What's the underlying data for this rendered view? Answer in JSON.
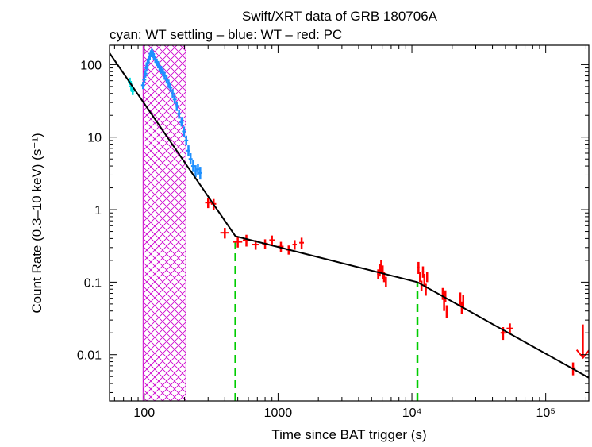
{
  "chart_data": {
    "type": "scatter",
    "title": "Swift/XRT data of GRB 180706A",
    "subtitle": "cyan: WT settling – blue: WT – red: PC",
    "xlabel": "Time since BAT trigger (s)",
    "ylabel": "Count Rate (0.3–10 keV) (s⁻¹)",
    "xscale": "log",
    "yscale": "log",
    "xlim": [
      55,
      210000
    ],
    "ylim": [
      0.0023,
      185
    ],
    "grid": false,
    "x_ticks": [
      {
        "value": 100,
        "label": "100"
      },
      {
        "value": 1000,
        "label": "1000"
      },
      {
        "value": 10000,
        "label": "10⁴"
      },
      {
        "value": 100000,
        "label": "10⁵"
      }
    ],
    "y_ticks": [
      {
        "value": 100,
        "label": "100"
      },
      {
        "value": 10,
        "label": "10"
      },
      {
        "value": 1,
        "label": "1"
      },
      {
        "value": 0.1,
        "label": "0.1"
      },
      {
        "value": 0.01,
        "label": "0.01"
      }
    ],
    "shaded_interval": {
      "x0": 98,
      "x1": 205,
      "color": "#cc00cc"
    },
    "break_lines": [
      {
        "x": 480,
        "color": "#00cc00"
      },
      {
        "x": 11000,
        "color": "#00cc00"
      }
    ],
    "model_line": [
      [
        55,
        145
      ],
      [
        480,
        0.43
      ],
      [
        11000,
        0.1
      ],
      [
        210000,
        0.0048
      ]
    ],
    "series": [
      {
        "name": "WT settling",
        "color": "#00e0e0",
        "points": [
          [
            78,
            58,
            52,
            66
          ],
          [
            80,
            50,
            44,
            56
          ],
          [
            82,
            43,
            38,
            48
          ]
        ]
      },
      {
        "name": "WT",
        "color": "#1e90ff",
        "points": [
          [
            98,
            52,
            46,
            58
          ],
          [
            100,
            62,
            55,
            70
          ],
          [
            102,
            75,
            66,
            84
          ],
          [
            104,
            90,
            80,
            101
          ],
          [
            106,
            105,
            94,
            118
          ],
          [
            108,
            118,
            106,
            132
          ],
          [
            110,
            130,
            117,
            145
          ],
          [
            112,
            142,
            128,
            158
          ],
          [
            114,
            148,
            133,
            165
          ],
          [
            116,
            140,
            126,
            156
          ],
          [
            118,
            128,
            115,
            143
          ],
          [
            121,
            118,
            106,
            132
          ],
          [
            124,
            108,
            96,
            121
          ],
          [
            127,
            100,
            89,
            112
          ],
          [
            130,
            92,
            82,
            103
          ],
          [
            134,
            85,
            75,
            96
          ],
          [
            138,
            78,
            69,
            88
          ],
          [
            142,
            70,
            62,
            79
          ],
          [
            147,
            62,
            55,
            70
          ],
          [
            152,
            55,
            48,
            62
          ],
          [
            157,
            48,
            42,
            55
          ],
          [
            163,
            40,
            35,
            46
          ],
          [
            169,
            33,
            29,
            38
          ],
          [
            175,
            27,
            23,
            31
          ],
          [
            182,
            21,
            18,
            24
          ],
          [
            190,
            16,
            14,
            19
          ],
          [
            198,
            12,
            10,
            14
          ],
          [
            206,
            9,
            7.7,
            10.5
          ],
          [
            214,
            6.5,
            5.5,
            7.7
          ],
          [
            222,
            5.0,
            4.2,
            6.0
          ],
          [
            232,
            4.0,
            3.3,
            4.8
          ],
          [
            242,
            3.4,
            2.8,
            4.1
          ],
          [
            252,
            3.6,
            3.0,
            4.3
          ],
          [
            262,
            3.2,
            2.6,
            3.9
          ]
        ]
      },
      {
        "name": "PC",
        "color": "#ff0000",
        "points": [
          [
            300,
            1.25,
            1.05,
            1.45,
            285,
            318
          ],
          [
            330,
            1.2,
            1.0,
            1.4,
            315,
            345
          ],
          [
            400,
            0.48,
            0.4,
            0.56,
            370,
            430
          ],
          [
            500,
            0.36,
            0.3,
            0.42,
            460,
            540
          ],
          [
            580,
            0.38,
            0.31,
            0.45,
            545,
            615
          ],
          [
            680,
            0.33,
            0.28,
            0.38,
            640,
            720
          ],
          [
            800,
            0.34,
            0.29,
            0.39,
            760,
            840
          ],
          [
            900,
            0.38,
            0.32,
            0.44,
            860,
            945
          ],
          [
            1050,
            0.31,
            0.26,
            0.36,
            1000,
            1100
          ],
          [
            1200,
            0.28,
            0.24,
            0.32,
            1150,
            1250
          ],
          [
            1330,
            0.33,
            0.28,
            0.38,
            1280,
            1380
          ],
          [
            1500,
            0.35,
            0.29,
            0.41,
            1440,
            1560
          ],
          [
            5600,
            0.13,
            0.11,
            0.15,
            5500,
            5700
          ],
          [
            5750,
            0.15,
            0.12,
            0.18,
            5650,
            5850
          ],
          [
            5900,
            0.17,
            0.14,
            0.2,
            5800,
            6000
          ],
          [
            6050,
            0.14,
            0.11,
            0.17,
            5950,
            6150
          ],
          [
            6200,
            0.12,
            0.1,
            0.14,
            6100,
            6300
          ],
          [
            6400,
            0.1,
            0.085,
            0.118,
            6300,
            6500
          ],
          [
            11200,
            0.16,
            0.13,
            0.19,
            11000,
            11400
          ],
          [
            11500,
            0.12,
            0.1,
            0.14,
            11300,
            11700
          ],
          [
            11800,
            0.09,
            0.075,
            0.105,
            11600,
            12000
          ],
          [
            12100,
            0.14,
            0.115,
            0.165,
            11900,
            12300
          ],
          [
            12400,
            0.11,
            0.09,
            0.13,
            12200,
            12600
          ],
          [
            12700,
            0.08,
            0.065,
            0.095,
            12500,
            12900
          ],
          [
            13000,
            0.12,
            0.1,
            0.14,
            12800,
            13200
          ],
          [
            17000,
            0.07,
            0.057,
            0.083,
            16800,
            17200
          ],
          [
            17400,
            0.05,
            0.04,
            0.06,
            17200,
            17600
          ],
          [
            17800,
            0.065,
            0.053,
            0.077,
            17600,
            18000
          ],
          [
            18200,
            0.04,
            0.032,
            0.048,
            18000,
            18400
          ],
          [
            23000,
            0.06,
            0.048,
            0.072,
            22700,
            23300
          ],
          [
            23600,
            0.045,
            0.036,
            0.054,
            23300,
            23900
          ],
          [
            24200,
            0.055,
            0.044,
            0.066,
            23900,
            24500
          ],
          [
            48000,
            0.02,
            0.016,
            0.024,
            46000,
            50000
          ],
          [
            54000,
            0.023,
            0.019,
            0.027,
            51000,
            57000
          ],
          [
            160000,
            0.0065,
            0.0052,
            0.0078,
            153000,
            167000
          ]
        ]
      }
    ],
    "upper_limits": [
      {
        "x": 190000,
        "y": 0.015,
        "color": "#ff0000"
      }
    ]
  }
}
